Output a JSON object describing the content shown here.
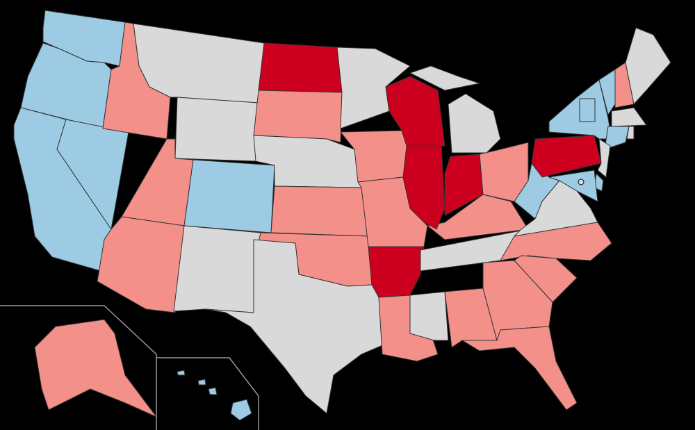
{
  "map": {
    "background": "#000000",
    "border": "#333333",
    "fills": [
      "#9ccbe3",
      "#f4908a",
      "#cc001e",
      "#d9d9d9"
    ],
    "inset_line": "#999999"
  }
}
